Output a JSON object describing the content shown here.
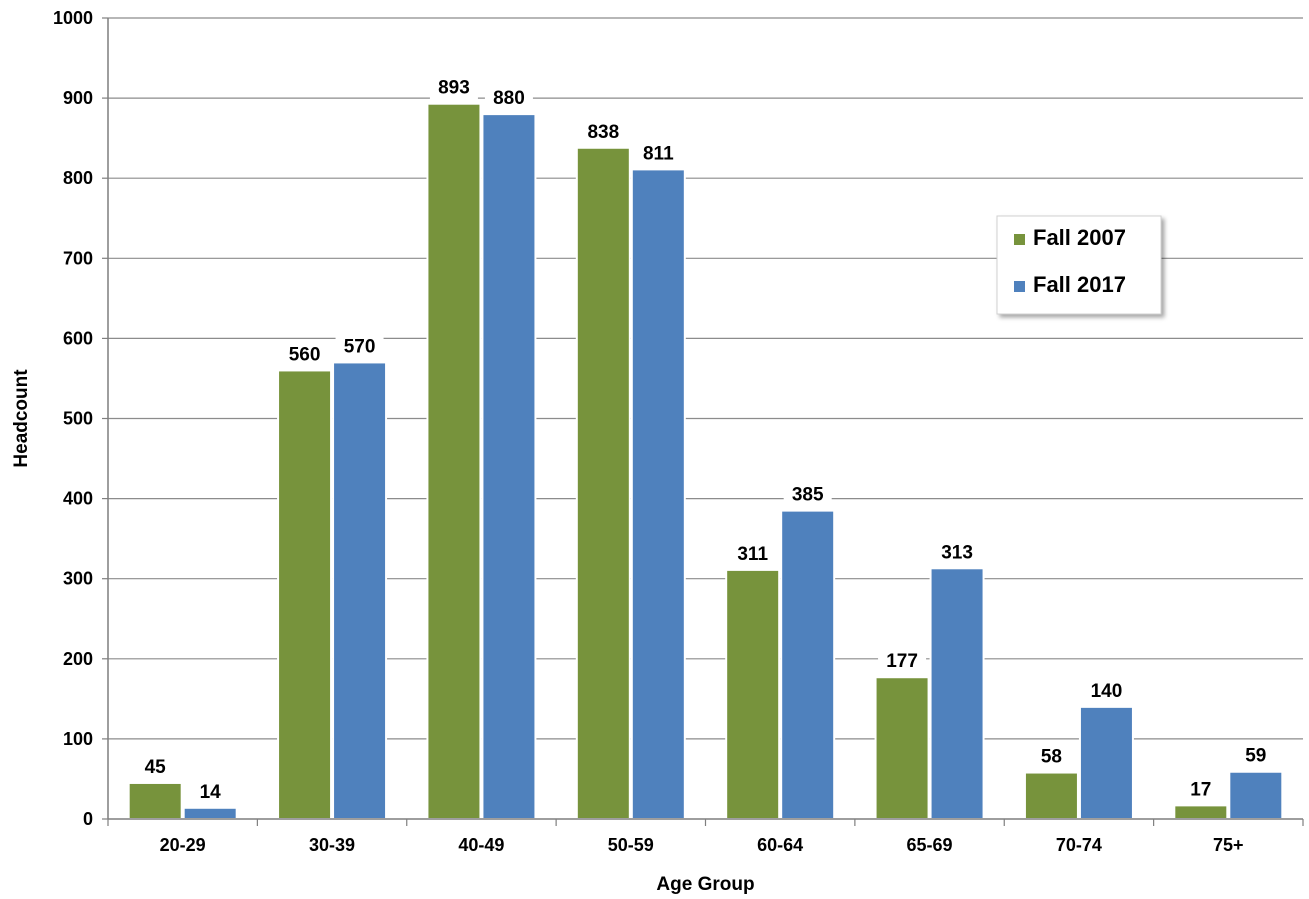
{
  "chart_data": {
    "type": "bar",
    "categories": [
      "20-29",
      "30-39",
      "40-49",
      "50-59",
      "60-64",
      "65-69",
      "70-74",
      "75+"
    ],
    "series": [
      {
        "name": "Fall 2007",
        "color": "#77933C",
        "values": [
          45,
          560,
          893,
          838,
          311,
          177,
          58,
          17
        ]
      },
      {
        "name": "Fall 2017",
        "color": "#4F81BD",
        "values": [
          14,
          570,
          880,
          811,
          385,
          313,
          140,
          59
        ]
      }
    ],
    "title": "",
    "xlabel": "Age Group",
    "ylabel": "Headcount",
    "ylim": [
      0,
      1000
    ],
    "yticks": [
      0,
      100,
      200,
      300,
      400,
      500,
      600,
      700,
      800,
      900,
      1000
    ],
    "grid": true,
    "legend_position": "right"
  }
}
